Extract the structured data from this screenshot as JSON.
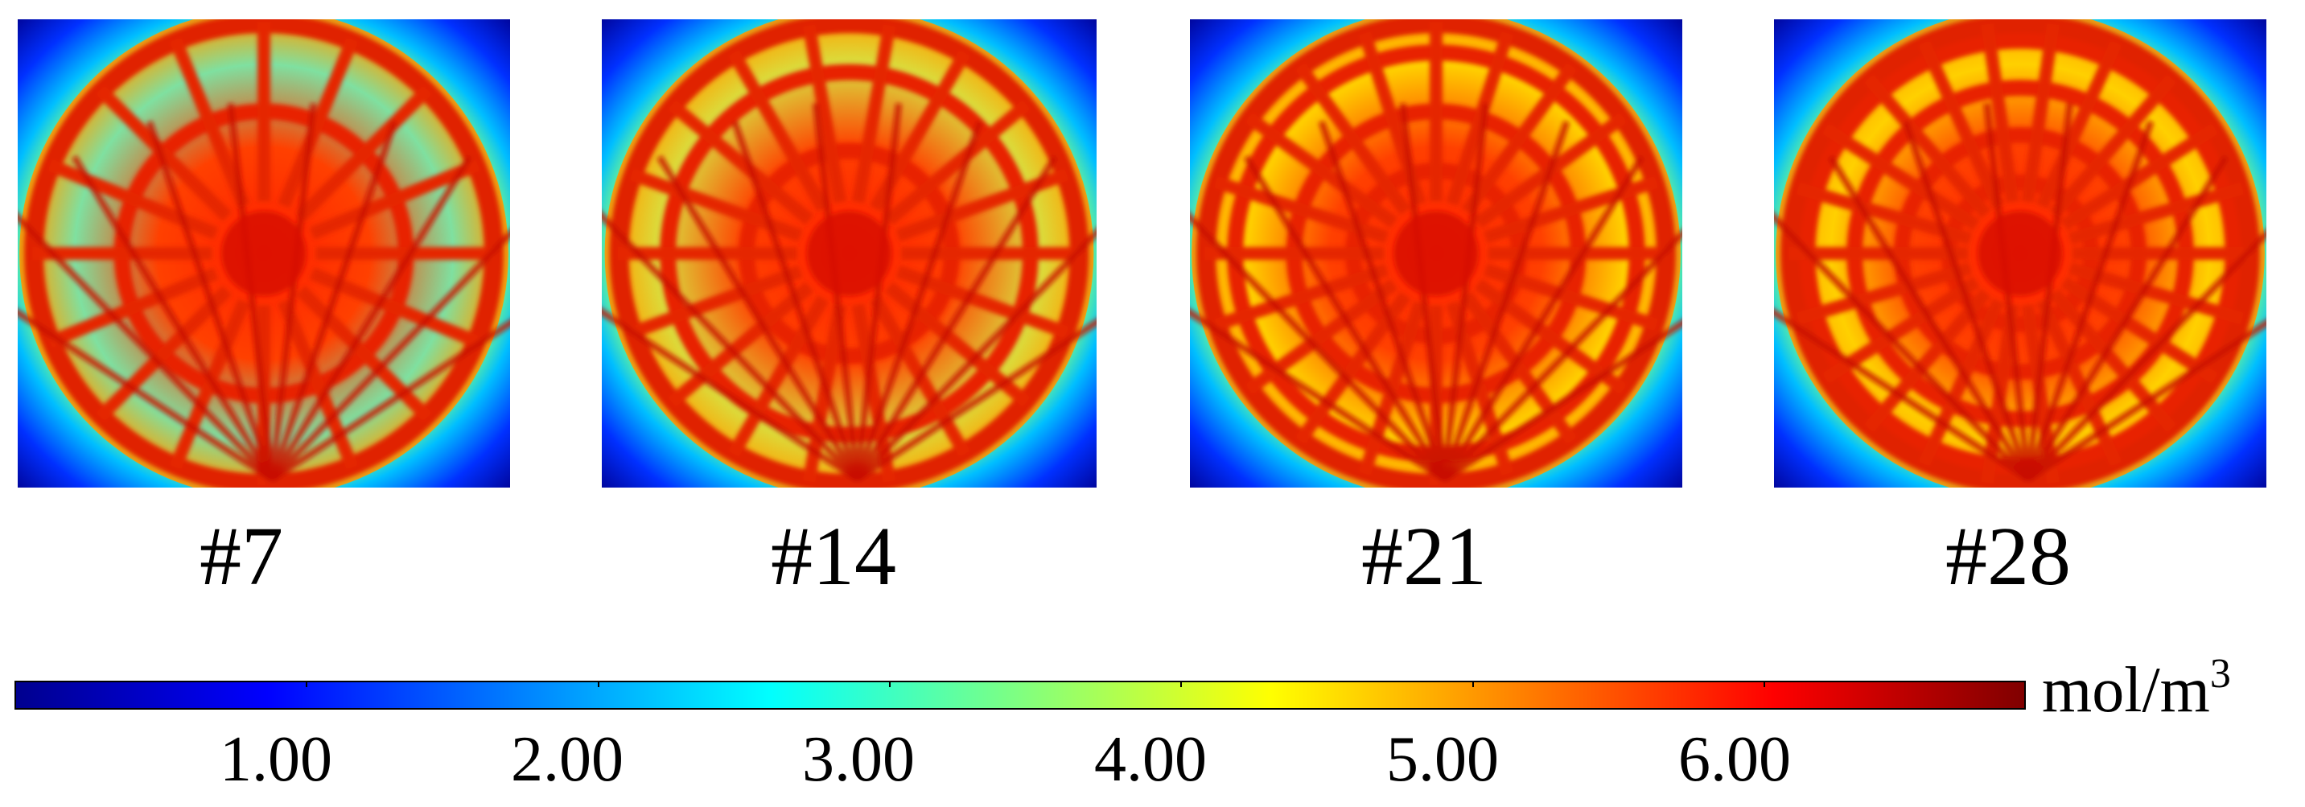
{
  "panels": [
    {
      "label": "#7",
      "channels": 7
    },
    {
      "label": "#14",
      "channels": 14
    },
    {
      "label": "#21",
      "channels": 21
    },
    {
      "label": "#28",
      "channels": 28
    }
  ],
  "colorbar": {
    "ticks": [
      "1.00",
      "2.00",
      "3.00",
      "4.00",
      "5.00",
      "6.00"
    ],
    "unit_base": "mol/m",
    "unit_exp": "3",
    "range": [
      0,
      6.9
    ],
    "colors": [
      "#00008f",
      "#0000ff",
      "#0080ff",
      "#00ffff",
      "#80ff80",
      "#ffff00",
      "#ff8000",
      "#ff0000",
      "#800000"
    ]
  }
}
